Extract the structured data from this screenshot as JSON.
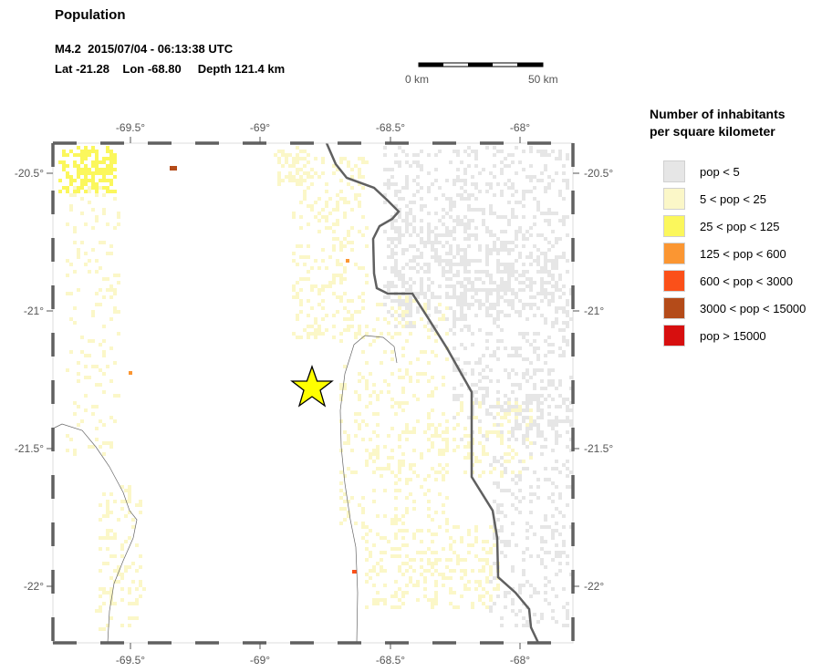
{
  "title": "Population",
  "event": {
    "line1": "M4.2  2015/07/04 - 06:13:38 UTC",
    "line2": "Lat -21.28    Lon -68.80     Depth 121.4 km",
    "magnitude": 4.2,
    "latitude": -21.28,
    "longitude": -68.8,
    "depth_km": 121.4
  },
  "scale_bar": {
    "start_label": "0 km",
    "end_label": "50 km"
  },
  "map": {
    "lon_ticks": [
      "-69.5°",
      "-69°",
      "-68.5°",
      "-68°"
    ],
    "lat_ticks": [
      "-20.5°",
      "-21°",
      "-21.5°",
      "-22°"
    ],
    "epicenter_color": "#ffff00",
    "border_color": "#606060"
  },
  "legend": {
    "title_line1": "Number of inhabitants",
    "title_line2": "per square kilometer",
    "items": [
      {
        "label": "pop < 5",
        "color": "#e6e6e6"
      },
      {
        "label": "5 < pop < 25",
        "color": "#fbf7c8"
      },
      {
        "label": "25 < pop < 125",
        "color": "#fbf75c"
      },
      {
        "label": "125 < pop < 600",
        "color": "#fb9632"
      },
      {
        "label": "600 < pop < 3000",
        "color": "#fb5019"
      },
      {
        "label": "3000 < pop < 15000",
        "color": "#b44b19"
      },
      {
        "label": "pop > 15000",
        "color": "#d70f0f"
      }
    ]
  }
}
